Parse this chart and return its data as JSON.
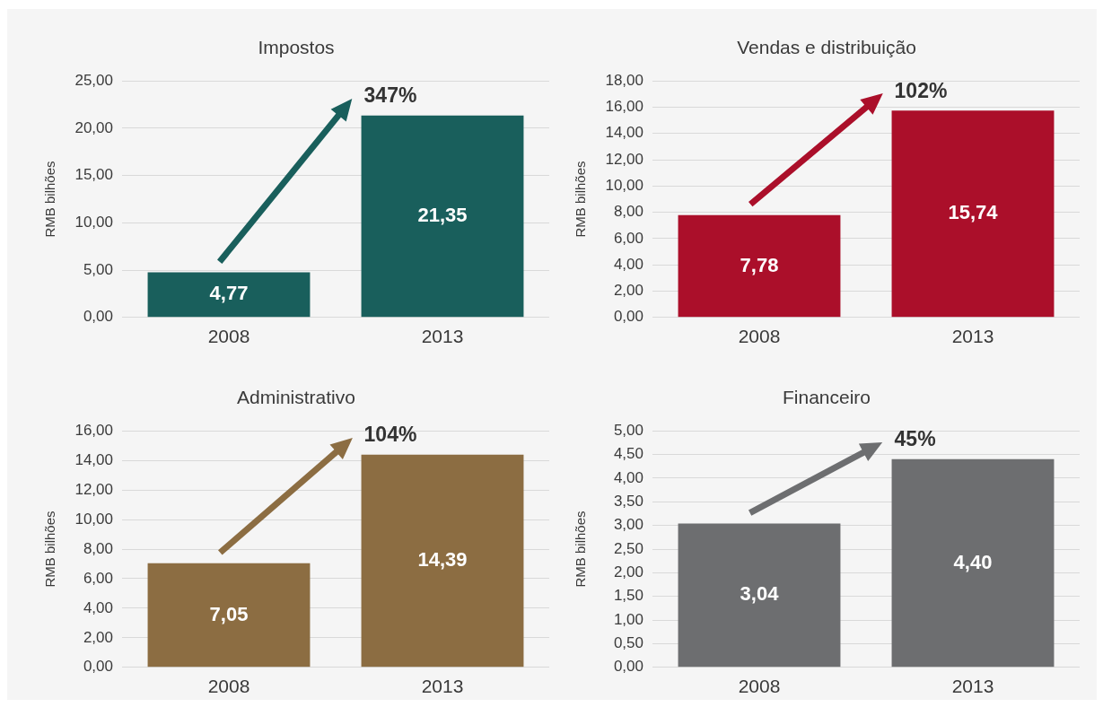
{
  "chart_data": [
    {
      "type": "bar",
      "title": "Impostos",
      "ylabel": "RMB bilhões",
      "categories": [
        "2008",
        "2013"
      ],
      "values": [
        4.77,
        21.35
      ],
      "color": "#195f5c",
      "value_labels": [
        "4,77",
        "21,35"
      ],
      "ylim": [
        0,
        25
      ],
      "yticks": [
        {
          "value": 0,
          "label": "0,00"
        },
        {
          "value": 5,
          "label": "5,00"
        },
        {
          "value": 10,
          "label": "10,00"
        },
        {
          "value": 15,
          "label": "15,00"
        },
        {
          "value": 20,
          "label": "20,00"
        },
        {
          "value": 25,
          "label": "25,00"
        }
      ],
      "grid": "y",
      "annotations": [
        "347%"
      ]
    },
    {
      "type": "bar",
      "title": "Vendas e distribuição",
      "ylabel": "RMB bilhões",
      "categories": [
        "2008",
        "2013"
      ],
      "values": [
        7.78,
        15.74
      ],
      "color": "#ab0f2a",
      "value_labels": [
        "7,78",
        "15,74"
      ],
      "ylim": [
        0,
        18
      ],
      "yticks": [
        {
          "value": 0,
          "label": "0,00"
        },
        {
          "value": 2,
          "label": "2,00"
        },
        {
          "value": 4,
          "label": "4,00"
        },
        {
          "value": 6,
          "label": "6,00"
        },
        {
          "value": 8,
          "label": "8,00"
        },
        {
          "value": 10,
          "label": "10,00"
        },
        {
          "value": 12,
          "label": "12,00"
        },
        {
          "value": 14,
          "label": "14,00"
        },
        {
          "value": 16,
          "label": "16,00"
        },
        {
          "value": 18,
          "label": "18,00"
        }
      ],
      "grid": "y",
      "annotations": [
        "102%"
      ]
    },
    {
      "type": "bar",
      "title": "Administrativo",
      "ylabel": "RMB bilhões",
      "categories": [
        "2008",
        "2013"
      ],
      "values": [
        7.05,
        14.39
      ],
      "color": "#8c6d42",
      "value_labels": [
        "7,05",
        "14,39"
      ],
      "ylim": [
        0,
        16
      ],
      "yticks": [
        {
          "value": 0,
          "label": "0,00"
        },
        {
          "value": 2,
          "label": "2,00"
        },
        {
          "value": 4,
          "label": "4,00"
        },
        {
          "value": 6,
          "label": "6,00"
        },
        {
          "value": 8,
          "label": "8,00"
        },
        {
          "value": 10,
          "label": "10,00"
        },
        {
          "value": 12,
          "label": "12,00"
        },
        {
          "value": 14,
          "label": "14,00"
        },
        {
          "value": 16,
          "label": "16,00"
        }
      ],
      "grid": "y",
      "annotations": [
        "104%"
      ]
    },
    {
      "type": "bar",
      "title": "Financeiro",
      "ylabel": "RMB bilhões",
      "categories": [
        "2008",
        "2013"
      ],
      "values": [
        3.04,
        4.4
      ],
      "color": "#6d6e70",
      "value_labels": [
        "3,04",
        "4,40"
      ],
      "ylim": [
        0,
        5
      ],
      "yticks": [
        {
          "value": 0,
          "label": "0,00"
        },
        {
          "value": 0.5,
          "label": "0,50"
        },
        {
          "value": 1,
          "label": "1,00"
        },
        {
          "value": 1.5,
          "label": "1,50"
        },
        {
          "value": 2,
          "label": "2,00"
        },
        {
          "value": 2.5,
          "label": "2,50"
        },
        {
          "value": 3,
          "label": "3,00"
        },
        {
          "value": 3.5,
          "label": "3,50"
        },
        {
          "value": 4,
          "label": "4,00"
        },
        {
          "value": 4.5,
          "label": "4,50"
        },
        {
          "value": 5,
          "label": "5,00"
        }
      ],
      "grid": "y",
      "annotations": [
        "45%"
      ]
    }
  ]
}
